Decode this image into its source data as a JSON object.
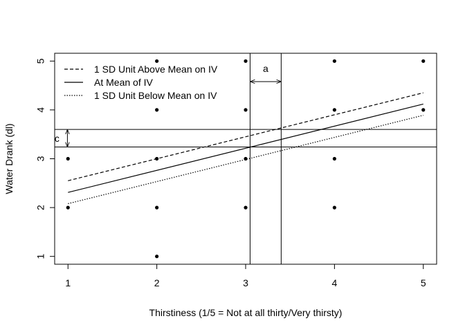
{
  "chart_data": {
    "type": "scatter",
    "title": "",
    "xlabel": "Thirstiness (1/5 = Not at all thirty/Very thirsty)",
    "ylabel": "Water Drank (dl)",
    "xlim": [
      0.85,
      5.15
    ],
    "ylim": [
      0.84,
      5.16
    ],
    "x_ticks": [
      1,
      2,
      3,
      4,
      5
    ],
    "y_ticks": [
      1,
      2,
      3,
      4,
      5
    ],
    "grid": false,
    "legend_position": "top-left",
    "points": [
      {
        "x": 1,
        "y": 2
      },
      {
        "x": 1,
        "y": 3
      },
      {
        "x": 2,
        "y": 1
      },
      {
        "x": 2,
        "y": 2
      },
      {
        "x": 2,
        "y": 3
      },
      {
        "x": 2,
        "y": 4
      },
      {
        "x": 2,
        "y": 5
      },
      {
        "x": 3,
        "y": 2
      },
      {
        "x": 3,
        "y": 3
      },
      {
        "x": 3,
        "y": 4
      },
      {
        "x": 3,
        "y": 5
      },
      {
        "x": 4,
        "y": 2
      },
      {
        "x": 4,
        "y": 3
      },
      {
        "x": 4,
        "y": 4
      },
      {
        "x": 4,
        "y": 5
      },
      {
        "x": 5,
        "y": 4
      },
      {
        "x": 5,
        "y": 5
      }
    ],
    "series": [
      {
        "name": "1 SD Unit Above Mean on IV",
        "style": "dashed",
        "x": [
          1,
          5
        ],
        "y": [
          2.55,
          4.35
        ]
      },
      {
        "name": "At Mean of IV",
        "style": "solid",
        "x": [
          1,
          5
        ],
        "y": [
          2.31,
          4.12
        ]
      },
      {
        "name": "1 SD Unit Below Mean on IV",
        "style": "dotted",
        "x": [
          1,
          5
        ],
        "y": [
          2.08,
          3.89
        ]
      }
    ],
    "reference_lines": {
      "vertical": [
        3.05,
        3.4
      ],
      "horizontal": [
        3.24,
        3.6
      ]
    },
    "annotations": [
      {
        "label": "a",
        "type": "horizontal-arrow",
        "x_from": 3.05,
        "x_to": 3.4,
        "y": 4.75
      },
      {
        "label": "c",
        "type": "vertical-arrow",
        "y_from": 3.24,
        "y_to": 3.6,
        "x": 0.9
      }
    ],
    "colors": {
      "ink": "#000000",
      "background": "#ffffff"
    }
  }
}
